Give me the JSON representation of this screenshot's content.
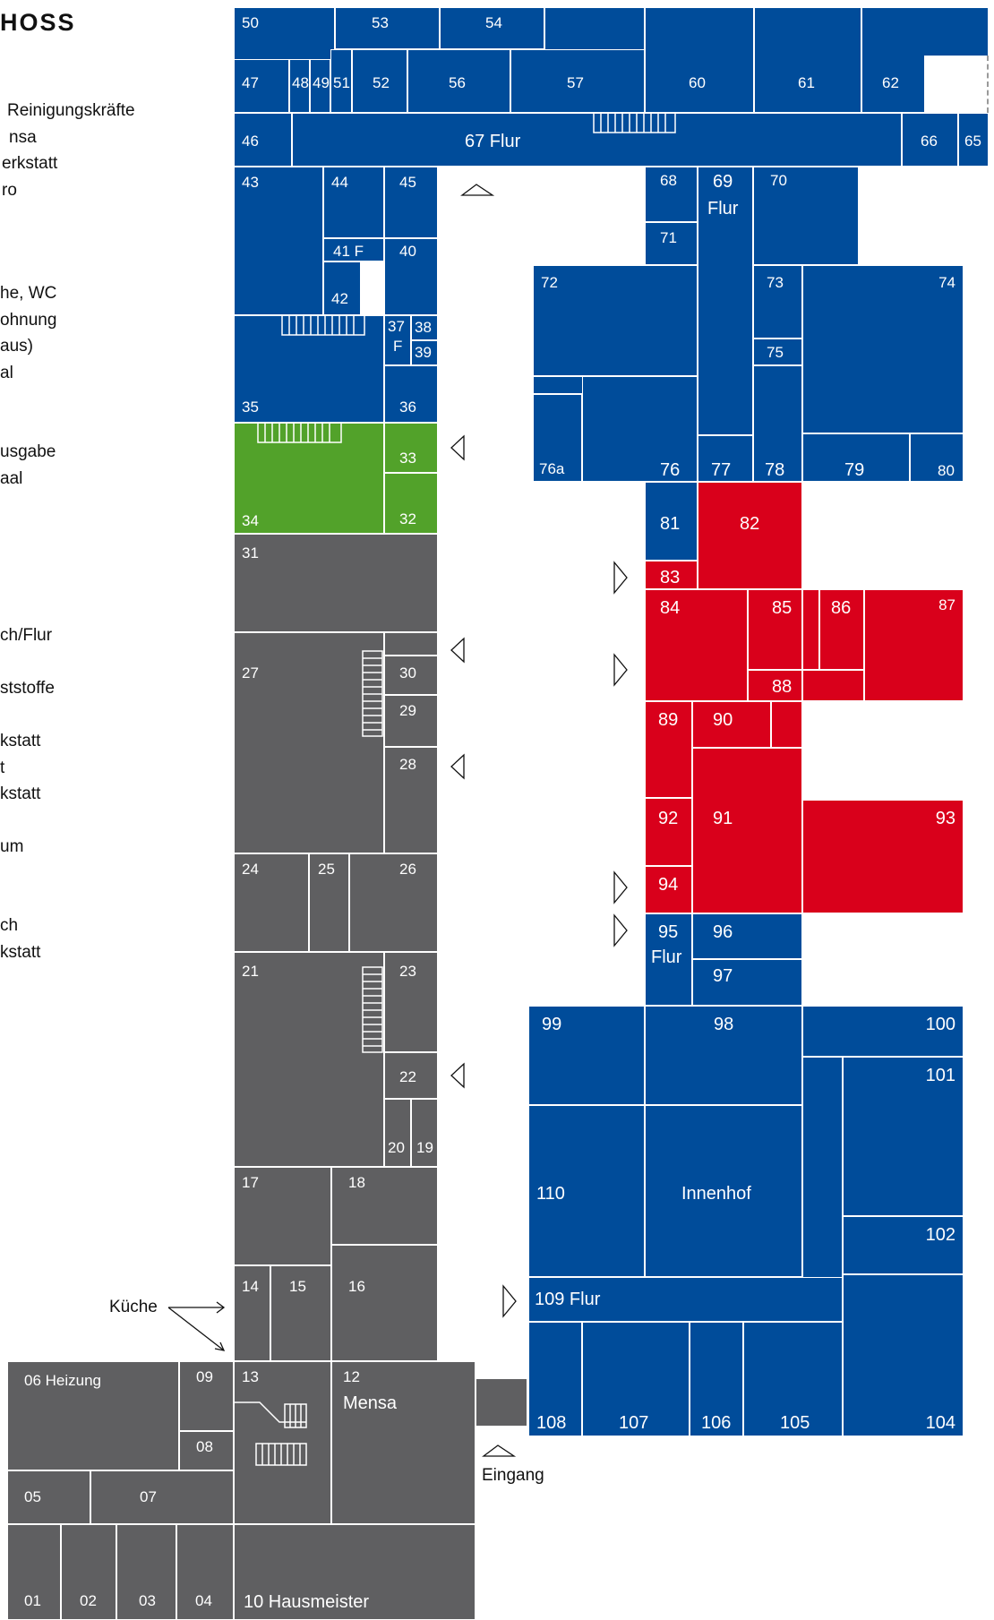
{
  "title": "HOSS",
  "colors": {
    "blue": "#004c9a",
    "green": "#52a22a",
    "grey": "#5f5f61",
    "red": "#d9001b",
    "white": "#ffffff"
  },
  "legend": [
    "Reinigungskräfte",
    "nsa",
    "erkstatt",
    "ro",
    "he, WC",
    "ohnung",
    "aus)",
    "al",
    "usgabe",
    "aal",
    "ch/Flur",
    "ststoffe",
    "kstatt",
    "t",
    "kstatt",
    "um",
    "ch",
    "kstatt"
  ],
  "labels": {
    "kueche": "Küche",
    "eingang": "Eingang"
  },
  "rooms": {
    "r50": "50",
    "r53": "53",
    "r54": "54",
    "r47": "47",
    "r48": "48",
    "r49": "49",
    "r51": "51",
    "r52": "52",
    "r56": "56",
    "r57": "57",
    "r60": "60",
    "r61": "61",
    "r62": "62",
    "r46": "46",
    "r67": "67 Flur",
    "r66": "66",
    "r65": "65",
    "r43": "43",
    "r44": "44",
    "r45": "45",
    "r41": "41 F",
    "r40": "40",
    "r42": "42",
    "r37": "37",
    "r37f": "F",
    "r38": "38",
    "r39": "39",
    "r35": "35",
    "r36": "36",
    "r33": "33",
    "r34": "34",
    "r32": "32",
    "r68": "68",
    "r69": "69",
    "r69sub": "Flur",
    "r70": "70",
    "r71": "71",
    "r72": "72",
    "r73": "73",
    "r74": "74",
    "r75": "75",
    "r76a": "76a",
    "r76": "76",
    "r77": "77",
    "r78": "78",
    "r79": "79",
    "r80": "80",
    "r81": "81",
    "r82": "82",
    "r83": "83",
    "r84": "84",
    "r85": "85",
    "r86": "86",
    "r87": "87",
    "r88": "88",
    "r89": "89",
    "r90": "90",
    "r91": "91",
    "r92": "92",
    "r93": "93",
    "r94": "94",
    "r95": "95",
    "r95sub": "Flur",
    "r96": "96",
    "r97": "97",
    "r31": "31",
    "r27": "27",
    "r30": "30",
    "r29": "29",
    "r28": "28",
    "r24": "24",
    "r25": "25",
    "r26": "26",
    "r21": "21",
    "r23": "23",
    "r22": "22",
    "r20": "20",
    "r19": "19",
    "r17": "17",
    "r18": "18",
    "r14": "14",
    "r15": "15",
    "r16": "16",
    "r99": "99",
    "r98": "98",
    "r100": "100",
    "r101": "101",
    "r102": "102",
    "r110": "110",
    "rInnenhof": "Innenhof",
    "r109": "109 Flur",
    "r108": "108",
    "r107": "107",
    "r106": "106",
    "r105": "105",
    "r104": "104",
    "r06": "06 Heizung",
    "r09": "09",
    "r08": "08",
    "r13": "13",
    "r12": "12",
    "r12sub": "Mensa",
    "r05": "05",
    "r07": "07",
    "r01": "01",
    "r02": "02",
    "r03": "03",
    "r04": "04",
    "r10": "10 Hausmeister"
  }
}
